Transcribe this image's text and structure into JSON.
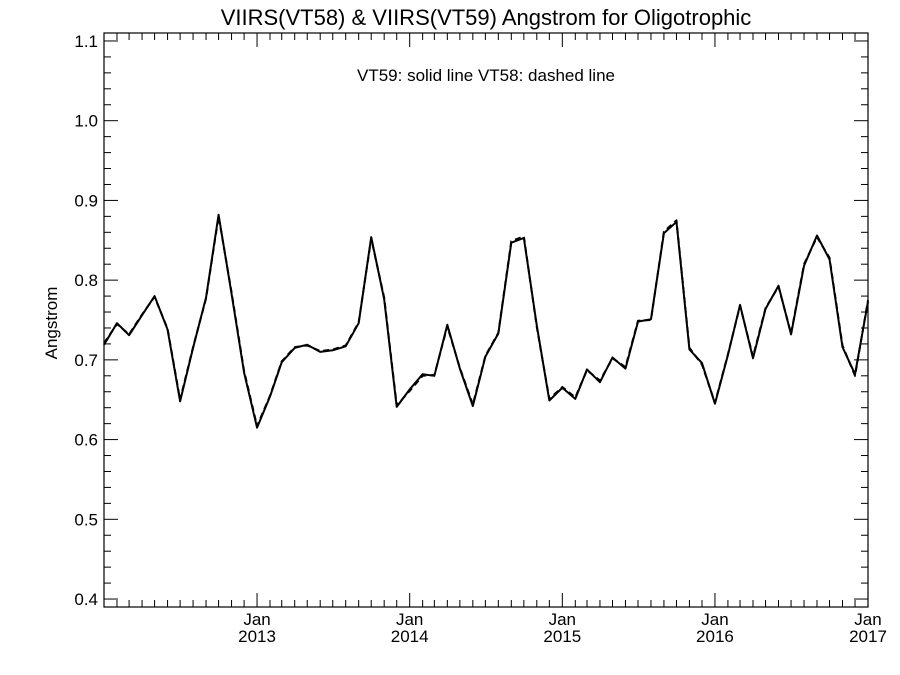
{
  "chart_data": {
    "type": "line",
    "title": "VIIRS(VT58) & VIIRS(VT59)  Angstrom for Oligotrophic",
    "annotation": "VT59: solid line   VT58: dashed line",
    "xlabel": "",
    "ylabel": "Angstrom",
    "ylim": [
      0.39,
      1.11
    ],
    "xlim": [
      "2012-01-01",
      "2017-01-01"
    ],
    "y_ticks": [
      {
        "value": 0.4,
        "label": "0.4"
      },
      {
        "value": 0.5,
        "label": "0.5"
      },
      {
        "value": 0.6,
        "label": "0.6"
      },
      {
        "value": 0.7,
        "label": "0.7"
      },
      {
        "value": 0.8,
        "label": "0.8"
      },
      {
        "value": 0.9,
        "label": "0.9"
      },
      {
        "value": 1.0,
        "label": "1.0"
      },
      {
        "value": 1.1,
        "label": "1.1"
      }
    ],
    "x_ticks": [
      {
        "date": "2013-01-01",
        "line1": "Jan",
        "line2": "2013"
      },
      {
        "date": "2014-01-01",
        "line1": "Jan",
        "line2": "2014"
      },
      {
        "date": "2015-01-01",
        "line1": "Jan",
        "line2": "2015"
      },
      {
        "date": "2016-01-01",
        "line1": "Jan",
        "line2": "2016"
      },
      {
        "date": "2017-01-01",
        "line1": "Jan",
        "line2": "2017"
      }
    ],
    "series": [
      {
        "name": "VT59",
        "style": "solid",
        "color": "#000000",
        "points": [
          [
            "2012-01-01",
            0.719
          ],
          [
            "2012-02-01",
            0.746
          ],
          [
            "2012-03-01",
            0.731
          ],
          [
            "2012-04-01",
            0.756
          ],
          [
            "2012-05-01",
            0.78
          ],
          [
            "2012-06-01",
            0.738
          ],
          [
            "2012-07-01",
            0.648
          ],
          [
            "2012-08-01",
            0.715
          ],
          [
            "2012-09-01",
            0.778
          ],
          [
            "2012-10-01",
            0.882
          ],
          [
            "2012-11-01",
            0.783
          ],
          [
            "2012-12-01",
            0.684
          ],
          [
            "2013-01-01",
            0.615
          ],
          [
            "2013-02-01",
            0.654
          ],
          [
            "2013-03-01",
            0.697
          ],
          [
            "2013-04-01",
            0.715
          ],
          [
            "2013-05-01",
            0.719
          ],
          [
            "2013-06-01",
            0.71
          ],
          [
            "2013-07-01",
            0.712
          ],
          [
            "2013-08-01",
            0.717
          ],
          [
            "2013-09-01",
            0.746
          ],
          [
            "2013-10-01",
            0.854
          ],
          [
            "2013-11-01",
            0.776
          ],
          [
            "2013-12-01",
            0.641
          ],
          [
            "2014-01-01",
            0.663
          ],
          [
            "2014-02-01",
            0.682
          ],
          [
            "2014-03-01",
            0.68
          ],
          [
            "2014-04-01",
            0.744
          ],
          [
            "2014-05-01",
            0.689
          ],
          [
            "2014-06-01",
            0.642
          ],
          [
            "2014-07-01",
            0.704
          ],
          [
            "2014-08-01",
            0.733
          ],
          [
            "2014-09-01",
            0.847
          ],
          [
            "2014-10-01",
            0.853
          ],
          [
            "2014-11-01",
            0.743
          ],
          [
            "2014-12-01",
            0.649
          ],
          [
            "2015-01-01",
            0.665
          ],
          [
            "2015-02-01",
            0.651
          ],
          [
            "2015-03-01",
            0.688
          ],
          [
            "2015-04-01",
            0.672
          ],
          [
            "2015-05-01",
            0.703
          ],
          [
            "2015-06-01",
            0.689
          ],
          [
            "2015-07-01",
            0.748
          ],
          [
            "2015-08-01",
            0.751
          ],
          [
            "2015-09-01",
            0.859
          ],
          [
            "2015-10-01",
            0.873
          ],
          [
            "2015-11-01",
            0.713
          ],
          [
            "2015-12-01",
            0.696
          ],
          [
            "2016-01-01",
            0.645
          ],
          [
            "2016-02-01",
            0.706
          ],
          [
            "2016-03-01",
            0.769
          ],
          [
            "2016-04-01",
            0.702
          ],
          [
            "2016-05-01",
            0.764
          ],
          [
            "2016-06-01",
            0.793
          ],
          [
            "2016-07-01",
            0.732
          ],
          [
            "2016-08-01",
            0.818
          ],
          [
            "2016-09-01",
            0.856
          ],
          [
            "2016-10-01",
            0.826
          ],
          [
            "2016-11-01",
            0.716
          ],
          [
            "2016-12-01",
            0.682
          ],
          [
            "2017-01-01",
            0.773
          ]
        ]
      },
      {
        "name": "VT58",
        "style": "dashed",
        "color": "#000000",
        "points": [
          [
            "2012-01-01",
            0.721
          ],
          [
            "2012-02-01",
            0.745
          ],
          [
            "2012-03-01",
            0.732
          ],
          [
            "2012-04-01",
            0.757
          ],
          [
            "2012-05-01",
            0.779
          ],
          [
            "2012-06-01",
            0.739
          ],
          [
            "2012-07-01",
            0.65
          ],
          [
            "2012-08-01",
            0.716
          ],
          [
            "2012-09-01",
            0.777
          ],
          [
            "2012-10-01",
            0.88
          ],
          [
            "2012-11-01",
            0.785
          ],
          [
            "2012-12-01",
            0.686
          ],
          [
            "2013-01-01",
            0.617
          ],
          [
            "2013-02-01",
            0.655
          ],
          [
            "2013-03-01",
            0.698
          ],
          [
            "2013-04-01",
            0.716
          ],
          [
            "2013-05-01",
            0.718
          ],
          [
            "2013-06-01",
            0.711
          ],
          [
            "2013-07-01",
            0.713
          ],
          [
            "2013-08-01",
            0.718
          ],
          [
            "2013-09-01",
            0.747
          ],
          [
            "2013-10-01",
            0.852
          ],
          [
            "2013-11-01",
            0.778
          ],
          [
            "2013-12-01",
            0.643
          ],
          [
            "2014-01-01",
            0.661
          ],
          [
            "2014-02-01",
            0.68
          ],
          [
            "2014-03-01",
            0.681
          ],
          [
            "2014-04-01",
            0.742
          ],
          [
            "2014-05-01",
            0.69
          ],
          [
            "2014-06-01",
            0.644
          ],
          [
            "2014-07-01",
            0.705
          ],
          [
            "2014-08-01",
            0.734
          ],
          [
            "2014-09-01",
            0.849
          ],
          [
            "2014-10-01",
            0.855
          ],
          [
            "2014-11-01",
            0.741
          ],
          [
            "2014-12-01",
            0.651
          ],
          [
            "2015-01-01",
            0.666
          ],
          [
            "2015-02-01",
            0.653
          ],
          [
            "2015-03-01",
            0.687
          ],
          [
            "2015-04-01",
            0.674
          ],
          [
            "2015-05-01",
            0.702
          ],
          [
            "2015-06-01",
            0.691
          ],
          [
            "2015-07-01",
            0.749
          ],
          [
            "2015-08-01",
            0.75
          ],
          [
            "2015-09-01",
            0.861
          ],
          [
            "2015-10-01",
            0.875
          ],
          [
            "2015-11-01",
            0.715
          ],
          [
            "2015-12-01",
            0.694
          ],
          [
            "2016-01-01",
            0.646
          ],
          [
            "2016-02-01",
            0.707
          ],
          [
            "2016-03-01",
            0.768
          ],
          [
            "2016-04-01",
            0.704
          ],
          [
            "2016-05-01",
            0.765
          ],
          [
            "2016-06-01",
            0.792
          ],
          [
            "2016-07-01",
            0.733
          ],
          [
            "2016-08-01",
            0.82
          ],
          [
            "2016-09-01",
            0.854
          ],
          [
            "2016-10-01",
            0.828
          ],
          [
            "2016-11-01",
            0.718
          ],
          [
            "2016-12-01",
            0.68
          ],
          [
            "2017-01-01",
            0.775
          ]
        ]
      }
    ],
    "grid": false,
    "minor_ticks": true
  }
}
